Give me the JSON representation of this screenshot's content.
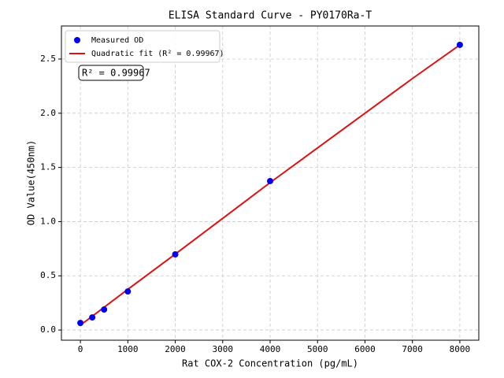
{
  "chart_data": {
    "type": "scatter",
    "title": "ELISA Standard Curve - PY0170Ra-T",
    "xlabel": "Rat COX-2 Concentration (pg/mL)",
    "ylabel": "OD Value(450nm)",
    "annotation": "R² = 0.99967",
    "series": [
      {
        "name": "Measured OD",
        "color": "#0000ee",
        "kind": "points",
        "x": [
          0,
          250,
          500,
          1000,
          2000,
          4000,
          8000
        ],
        "values": [
          0.065,
          0.116,
          0.189,
          0.356,
          0.698,
          1.374,
          2.631
        ]
      },
      {
        "name": "Quadratic fit (R² = 0.99967)",
        "color": "#dd1111",
        "kind": "line",
        "x": [
          0,
          1000,
          2000,
          3000,
          4000,
          5000,
          6000,
          7000,
          8000
        ],
        "values": [
          0.045,
          0.375,
          0.7,
          1.03,
          1.36,
          1.68,
          2.0,
          2.32,
          2.63
        ]
      }
    ],
    "xlim": [
      -400,
      8400
    ],
    "ylim": [
      -0.094,
      2.805
    ],
    "xticks": [
      0,
      1000,
      2000,
      3000,
      4000,
      5000,
      6000,
      7000,
      8000
    ],
    "yticks": [
      {
        "value": 0,
        "label": "0.0"
      },
      0.5,
      {
        "value": 1,
        "label": "1.0"
      },
      1.5,
      {
        "value": 2,
        "label": "2.0"
      },
      2.5
    ],
    "grid": true,
    "legend": "upper left"
  }
}
